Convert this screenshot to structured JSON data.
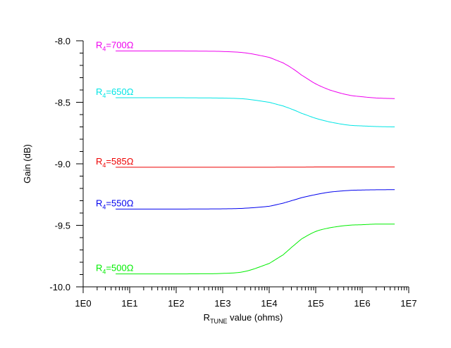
{
  "chart_data": {
    "type": "line",
    "title": "",
    "xlabel": {
      "main": "R",
      "subscript": "TUNE",
      "suffix": " value (ohms)"
    },
    "ylabel": "Gain (dB)",
    "x_scale": "log",
    "xlim": [
      1,
      10000000
    ],
    "ylim": [
      -10.0,
      -8.0
    ],
    "x_ticks": [
      {
        "value": 1,
        "label": "1E0"
      },
      {
        "value": 10,
        "label": "1E1"
      },
      {
        "value": 100,
        "label": "1E2"
      },
      {
        "value": 1000,
        "label": "1E3"
      },
      {
        "value": 10000,
        "label": "1E4"
      },
      {
        "value": 100000,
        "label": "1E5"
      },
      {
        "value": 1000000,
        "label": "1E6"
      },
      {
        "value": 10000000,
        "label": "1E7"
      }
    ],
    "y_ticks": [
      {
        "value": -8.0,
        "label": "-8.0"
      },
      {
        "value": -8.5,
        "label": "-8.5"
      },
      {
        "value": -9.0,
        "label": "-9.0"
      },
      {
        "value": -9.5,
        "label": "-9.5"
      },
      {
        "value": -10.0,
        "label": "-10.0"
      }
    ],
    "y_minor_step": 0.1,
    "grid": false,
    "legend": "inline labels at left end of each curve",
    "x": [
      5,
      10,
      30,
      100,
      300,
      1000,
      3000,
      10000,
      20000,
      30000,
      50000,
      100000,
      200000,
      500000,
      1000000,
      2000000,
      5000000
    ],
    "series": [
      {
        "label": {
          "main": "R",
          "subscript": "4",
          "suffix": "=700Ω"
        },
        "color": "#ee00ee",
        "values": [
          -8.083,
          -8.083,
          -8.083,
          -8.083,
          -8.084,
          -8.087,
          -8.098,
          -8.135,
          -8.18,
          -8.22,
          -8.28,
          -8.35,
          -8.4,
          -8.44,
          -8.455,
          -8.465,
          -8.47
        ]
      },
      {
        "label": {
          "main": "R",
          "subscript": "4",
          "suffix": "=650Ω"
        },
        "color": "#00e5e5",
        "values": [
          -8.463,
          -8.463,
          -8.463,
          -8.463,
          -8.464,
          -8.466,
          -8.473,
          -8.5,
          -8.53,
          -8.555,
          -8.59,
          -8.63,
          -8.66,
          -8.685,
          -8.692,
          -8.697,
          -8.7
        ]
      },
      {
        "label": {
          "main": "R",
          "subscript": "4",
          "suffix": "=585Ω"
        },
        "color": "#ee0000",
        "values": [
          -9.028,
          -9.028,
          -9.028,
          -9.028,
          -9.028,
          -9.028,
          -9.028,
          -9.028,
          -9.027,
          -9.027,
          -9.027,
          -9.026,
          -9.026,
          -9.026,
          -9.026,
          -9.026,
          -9.026
        ]
      },
      {
        "label": {
          "main": "R",
          "subscript": "4",
          "suffix": "=550Ω"
        },
        "color": "#0000ee",
        "values": [
          -9.368,
          -9.368,
          -9.368,
          -9.368,
          -9.367,
          -9.366,
          -9.361,
          -9.345,
          -9.32,
          -9.3,
          -9.275,
          -9.25,
          -9.23,
          -9.217,
          -9.213,
          -9.211,
          -9.21
        ]
      },
      {
        "label": {
          "main": "R",
          "subscript": "4",
          "suffix": "=500Ω"
        },
        "color": "#00ee00",
        "values": [
          -9.895,
          -9.895,
          -9.895,
          -9.895,
          -9.894,
          -9.891,
          -9.875,
          -9.81,
          -9.74,
          -9.68,
          -9.61,
          -9.55,
          -9.52,
          -9.5,
          -9.495,
          -9.49,
          -9.49
        ]
      }
    ]
  }
}
